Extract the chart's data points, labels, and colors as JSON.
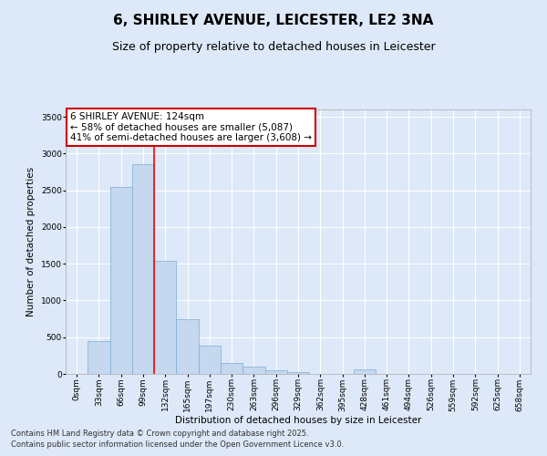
{
  "title": "6, SHIRLEY AVENUE, LEICESTER, LE2 3NA",
  "subtitle": "Size of property relative to detached houses in Leicester",
  "xlabel": "Distribution of detached houses by size in Leicester",
  "ylabel": "Number of detached properties",
  "bar_labels": [
    "0sqm",
    "33sqm",
    "66sqm",
    "99sqm",
    "132sqm",
    "165sqm",
    "197sqm",
    "230sqm",
    "263sqm",
    "296sqm",
    "329sqm",
    "362sqm",
    "395sqm",
    "428sqm",
    "461sqm",
    "494sqm",
    "526sqm",
    "559sqm",
    "592sqm",
    "625sqm",
    "658sqm"
  ],
  "bar_values": [
    5,
    450,
    2540,
    2850,
    1540,
    745,
    380,
    145,
    100,
    50,
    20,
    5,
    5,
    60,
    5,
    5,
    3,
    2,
    2,
    2,
    2
  ],
  "bar_color": "#c5d8f0",
  "bar_edge_color": "#7aadd4",
  "red_line_index": 4,
  "annotation_text": "6 SHIRLEY AVENUE: 124sqm\n← 58% of detached houses are smaller (5,087)\n41% of semi-detached houses are larger (3,608) →",
  "annotation_box_facecolor": "#ffffff",
  "annotation_box_edgecolor": "#cc0000",
  "ylim": [
    0,
    3600
  ],
  "yticks": [
    0,
    500,
    1000,
    1500,
    2000,
    2500,
    3000,
    3500
  ],
  "background_color": "#dde8f8",
  "plot_background": "#dde8f8",
  "grid_color": "#ffffff",
  "footer_line1": "Contains HM Land Registry data © Crown copyright and database right 2025.",
  "footer_line2": "Contains public sector information licensed under the Open Government Licence v3.0.",
  "title_fontsize": 11,
  "subtitle_fontsize": 9,
  "axis_label_fontsize": 7.5,
  "tick_fontsize": 6.5,
  "annotation_fontsize": 7.5,
  "footer_fontsize": 6
}
